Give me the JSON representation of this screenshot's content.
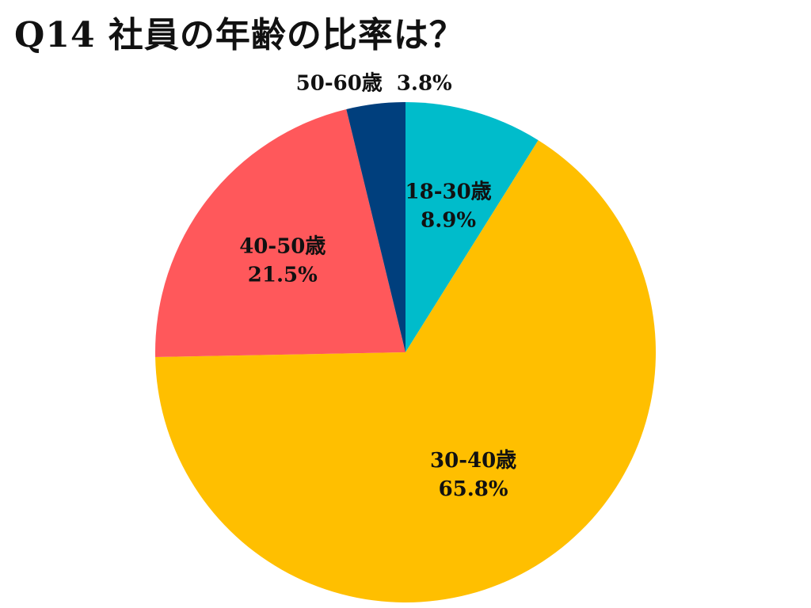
{
  "chart_data": {
    "type": "pie",
    "title": "Q14 社員の年齢の比率は？",
    "start_angle_deg": 0,
    "direction": "clockwise",
    "slices": [
      {
        "label": "18-30歳",
        "value": 8.9,
        "value_label": "8.9%",
        "color": "#00BCCB",
        "label_position": "inside"
      },
      {
        "label": "30-40歳",
        "value": 65.8,
        "value_label": "65.8%",
        "color": "#FFBF00",
        "label_position": "inside"
      },
      {
        "label": "40-50歳",
        "value": 21.5,
        "value_label": "21.5%",
        "color": "#FF585B",
        "label_position": "inside"
      },
      {
        "label": "50-60歳",
        "value": 3.8,
        "value_label": "3.8%",
        "color": "#003F7D",
        "label_position": "outside"
      }
    ]
  }
}
